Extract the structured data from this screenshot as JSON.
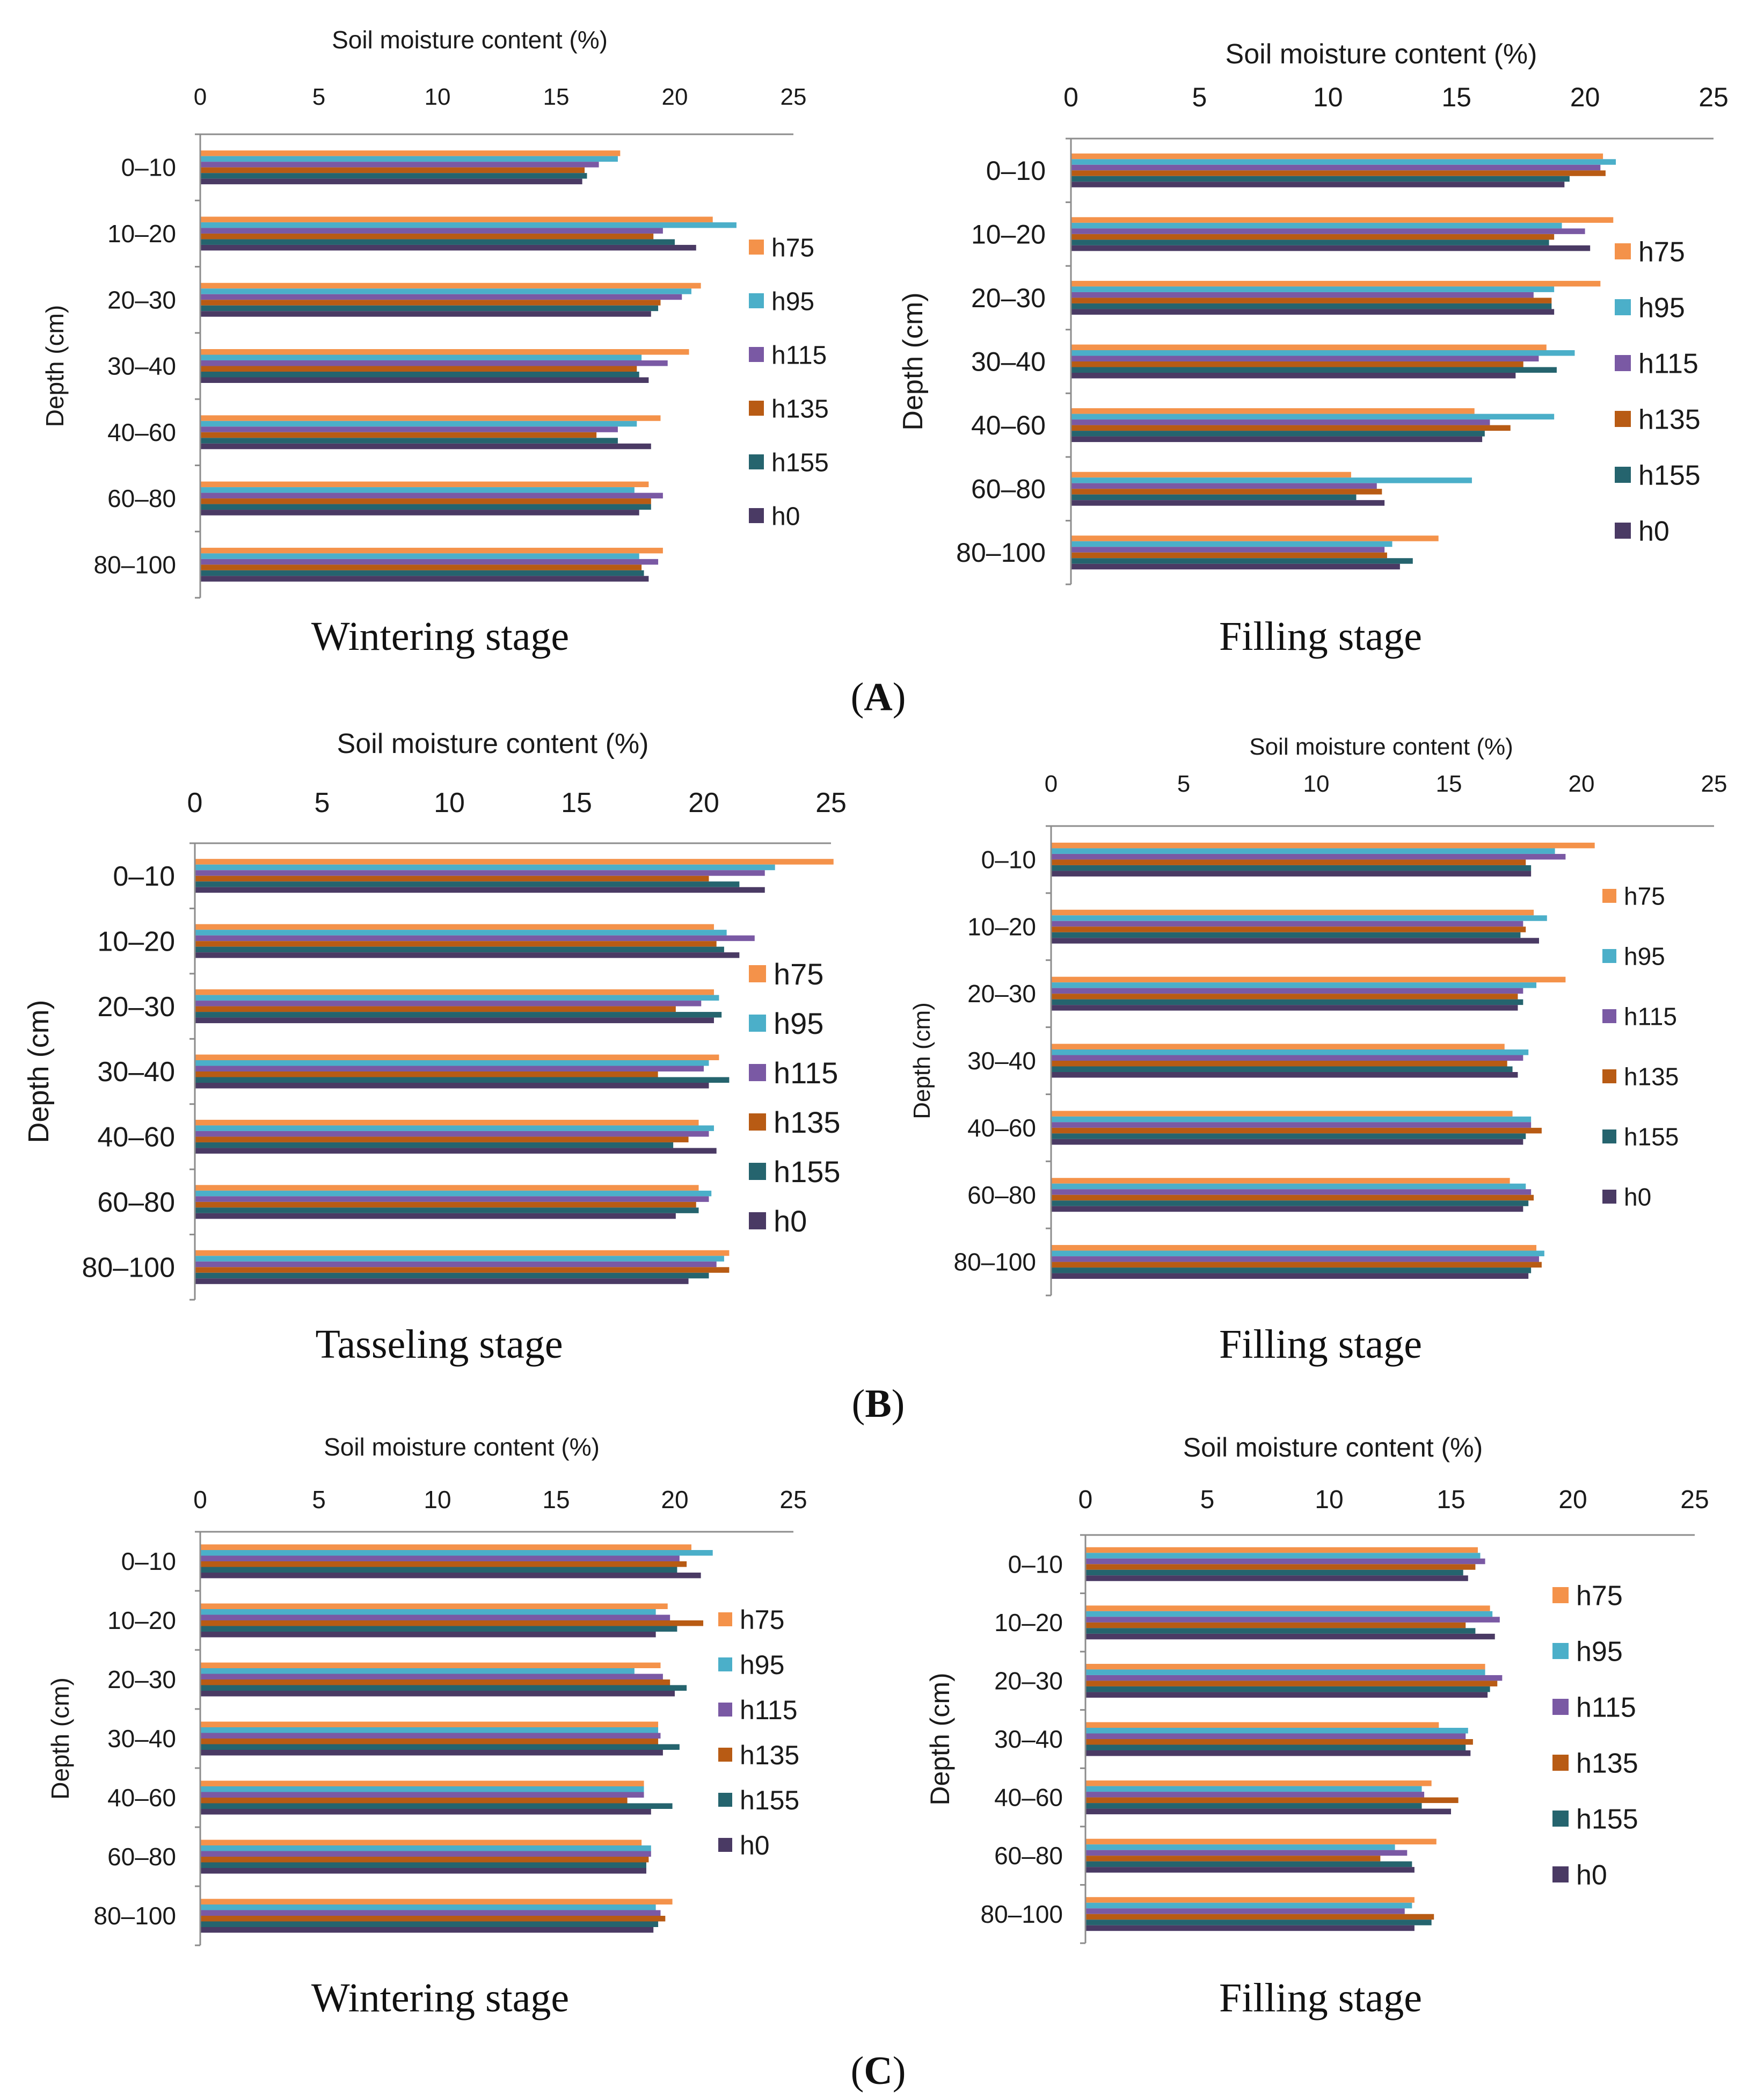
{
  "colors": {
    "h75": "#f4924a",
    "h95": "#4bafc9",
    "h115": "#7a59a4",
    "h135": "#b85b14",
    "h155": "#25646e",
    "h0": "#4a3a64",
    "axis": "#8c8c8c",
    "text": "#1a1a1a"
  },
  "row_labels": [
    {
      "text": "(A)",
      "prefix": "(",
      "letter": "A",
      "suffix": ")"
    },
    {
      "text": "(B)",
      "prefix": "(",
      "letter": "B",
      "suffix": ")"
    },
    {
      "text": "(C)",
      "prefix": "(",
      "letter": "C",
      "suffix": ")"
    }
  ],
  "chart_data": [
    {
      "type": "bar",
      "orientation": "horizontal",
      "panel": "A-left",
      "title": "Wintering stage",
      "xlabel": "Soil moisture content (%)",
      "ylabel": "Depth (cm)",
      "xlim": [
        0,
        25
      ],
      "xticks": [
        0,
        5,
        10,
        15,
        20,
        25
      ],
      "categories": [
        "0–10",
        "10–20",
        "20–30",
        "30–40",
        "40–60",
        "60–80",
        "80–100"
      ],
      "legend": [
        "h75",
        "h95",
        "h115",
        "h135",
        "h155",
        "h0"
      ],
      "series": [
        {
          "name": "h75",
          "values": [
            17.7,
            21.6,
            21.1,
            20.6,
            19.4,
            18.9,
            19.5
          ]
        },
        {
          "name": "h95",
          "values": [
            17.6,
            22.6,
            20.7,
            18.6,
            18.4,
            18.3,
            18.5
          ]
        },
        {
          "name": "h115",
          "values": [
            16.8,
            19.5,
            20.3,
            19.7,
            17.6,
            19.5,
            19.3
          ]
        },
        {
          "name": "h135",
          "values": [
            16.2,
            19.1,
            19.4,
            18.4,
            16.7,
            19.0,
            18.6
          ]
        },
        {
          "name": "h155",
          "values": [
            16.3,
            20.0,
            19.3,
            18.5,
            17.6,
            19.0,
            18.7
          ]
        },
        {
          "name": "h0",
          "values": [
            16.1,
            20.9,
            19.0,
            18.9,
            19.0,
            18.5,
            18.9
          ]
        }
      ]
    },
    {
      "type": "bar",
      "orientation": "horizontal",
      "panel": "A-right",
      "title": "Filling stage",
      "xlabel": "Soil moisture content (%)",
      "ylabel": "Depth (cm)",
      "xlim": [
        0,
        25
      ],
      "xticks": [
        0,
        5,
        10,
        15,
        20,
        25
      ],
      "categories": [
        "0–10",
        "10–20",
        "20–30",
        "30–40",
        "40–60",
        "60–80",
        "80–100"
      ],
      "legend": [
        "h75",
        "h95",
        "h115",
        "h135",
        "h155",
        "h0"
      ],
      "series": [
        {
          "name": "h75",
          "values": [
            20.7,
            21.1,
            20.6,
            18.5,
            15.7,
            10.9,
            14.3
          ]
        },
        {
          "name": "h95",
          "values": [
            21.2,
            19.1,
            18.8,
            19.6,
            18.8,
            15.6,
            12.5
          ]
        },
        {
          "name": "h115",
          "values": [
            20.6,
            20.0,
            18.0,
            18.2,
            16.3,
            11.9,
            12.2
          ]
        },
        {
          "name": "h135",
          "values": [
            20.8,
            18.8,
            18.7,
            17.6,
            17.1,
            12.1,
            12.3
          ]
        },
        {
          "name": "h155",
          "values": [
            19.4,
            18.6,
            18.7,
            18.9,
            16.1,
            11.1,
            13.3
          ]
        },
        {
          "name": "h0",
          "values": [
            19.2,
            20.2,
            18.8,
            17.3,
            16.0,
            12.2,
            12.8
          ]
        }
      ]
    },
    {
      "type": "bar",
      "orientation": "horizontal",
      "panel": "B-left",
      "title": "Tasseling stage",
      "xlabel": "Soil moisture content (%)",
      "ylabel": "Depth (cm)",
      "xlim": [
        0,
        25
      ],
      "xticks": [
        0,
        5,
        10,
        15,
        20,
        25
      ],
      "categories": [
        "0–10",
        "10–20",
        "20–30",
        "30–40",
        "40–60",
        "60–80",
        "80–100"
      ],
      "legend": [
        "h75",
        "h95",
        "h115",
        "h135",
        "h155",
        "h0"
      ],
      "series": [
        {
          "name": "h75",
          "values": [
            25.1,
            20.4,
            20.4,
            20.6,
            19.8,
            19.8,
            21.0
          ]
        },
        {
          "name": "h95",
          "values": [
            22.8,
            20.9,
            20.6,
            20.2,
            20.4,
            20.3,
            20.8
          ]
        },
        {
          "name": "h115",
          "values": [
            22.4,
            22.0,
            19.9,
            20.0,
            20.2,
            20.2,
            20.5
          ]
        },
        {
          "name": "h135",
          "values": [
            20.2,
            20.5,
            18.9,
            18.2,
            19.4,
            19.7,
            21.0
          ]
        },
        {
          "name": "h155",
          "values": [
            21.4,
            20.8,
            20.7,
            21.0,
            18.8,
            19.8,
            20.2
          ]
        },
        {
          "name": "h0",
          "values": [
            22.4,
            21.4,
            20.4,
            20.2,
            20.5,
            18.9,
            19.4
          ]
        }
      ]
    },
    {
      "type": "bar",
      "orientation": "horizontal",
      "panel": "B-right",
      "title": "Filling stage",
      "xlabel": "Soil moisture content (%)",
      "ylabel": "Depth (cm)",
      "xlim": [
        0,
        25
      ],
      "xticks": [
        0,
        5,
        10,
        15,
        20,
        25
      ],
      "categories": [
        "0–10",
        "10–20",
        "20–30",
        "30–40",
        "40–60",
        "60–80",
        "80–100"
      ],
      "legend": [
        "h75",
        "h95",
        "h115",
        "h135",
        "h155",
        "h0"
      ],
      "series": [
        {
          "name": "h75",
          "values": [
            20.5,
            18.2,
            19.4,
            17.1,
            17.4,
            17.3,
            18.3
          ]
        },
        {
          "name": "h95",
          "values": [
            19.0,
            18.7,
            18.3,
            18.0,
            18.1,
            17.9,
            18.6
          ]
        },
        {
          "name": "h115",
          "values": [
            19.4,
            17.8,
            17.8,
            17.8,
            18.1,
            18.1,
            18.4
          ]
        },
        {
          "name": "h135",
          "values": [
            17.9,
            17.9,
            17.6,
            17.2,
            18.5,
            18.2,
            18.5
          ]
        },
        {
          "name": "h155",
          "values": [
            18.1,
            17.7,
            17.8,
            17.4,
            17.9,
            18.0,
            18.1
          ]
        },
        {
          "name": "h0",
          "values": [
            18.1,
            18.4,
            17.6,
            17.6,
            17.8,
            17.8,
            18.0
          ]
        }
      ]
    },
    {
      "type": "bar",
      "orientation": "horizontal",
      "panel": "C-left",
      "title": "Wintering stage",
      "xlabel": "Soil moisture content (%)",
      "ylabel": "Depth (cm)",
      "xlim": [
        0,
        25
      ],
      "xticks": [
        0,
        5,
        10,
        15,
        20,
        25
      ],
      "categories": [
        "0–10",
        "10–20",
        "20–30",
        "30–40",
        "40–60",
        "60–80",
        "80–100"
      ],
      "legend": [
        "h75",
        "h95",
        "h115",
        "h135",
        "h155",
        "h0"
      ],
      "series": [
        {
          "name": "h75",
          "values": [
            20.7,
            19.7,
            19.4,
            19.3,
            18.7,
            18.6,
            19.9
          ]
        },
        {
          "name": "h95",
          "values": [
            21.6,
            19.2,
            18.3,
            19.3,
            18.7,
            19.0,
            19.2
          ]
        },
        {
          "name": "h115",
          "values": [
            20.2,
            19.8,
            19.5,
            19.4,
            18.7,
            19.0,
            19.4
          ]
        },
        {
          "name": "h135",
          "values": [
            20.5,
            21.2,
            19.8,
            19.3,
            18.0,
            18.9,
            19.6
          ]
        },
        {
          "name": "h155",
          "values": [
            20.1,
            20.1,
            20.5,
            20.2,
            19.9,
            18.8,
            19.3
          ]
        },
        {
          "name": "h0",
          "values": [
            21.1,
            19.2,
            20.0,
            19.5,
            19.0,
            18.8,
            19.1
          ]
        }
      ]
    },
    {
      "type": "bar",
      "orientation": "horizontal",
      "panel": "C-right",
      "title": "Filling stage",
      "xlabel": "Soil moisture content (%)",
      "ylabel": "Depth (cm)",
      "xlim": [
        0,
        25
      ],
      "xticks": [
        0,
        5,
        10,
        15,
        20,
        25
      ],
      "categories": [
        "0–10",
        "10–20",
        "20–30",
        "30–40",
        "40–60",
        "60–80",
        "80–100"
      ],
      "legend": [
        "h75",
        "h95",
        "h115",
        "h135",
        "h155",
        "h0"
      ],
      "series": [
        {
          "name": "h75",
          "values": [
            16.1,
            16.6,
            16.4,
            14.5,
            14.2,
            14.4,
            13.5
          ]
        },
        {
          "name": "h95",
          "values": [
            16.2,
            16.7,
            16.4,
            15.7,
            13.8,
            12.7,
            13.4
          ]
        },
        {
          "name": "h115",
          "values": [
            16.4,
            17.0,
            17.1,
            15.6,
            13.9,
            13.2,
            13.1
          ]
        },
        {
          "name": "h135",
          "values": [
            16.0,
            15.6,
            16.9,
            15.9,
            15.3,
            12.1,
            14.3
          ]
        },
        {
          "name": "h155",
          "values": [
            15.5,
            16.0,
            16.6,
            15.6,
            13.8,
            13.4,
            14.2
          ]
        },
        {
          "name": "h0",
          "values": [
            15.7,
            16.8,
            16.5,
            15.8,
            15.0,
            13.5,
            13.5
          ]
        }
      ]
    }
  ]
}
